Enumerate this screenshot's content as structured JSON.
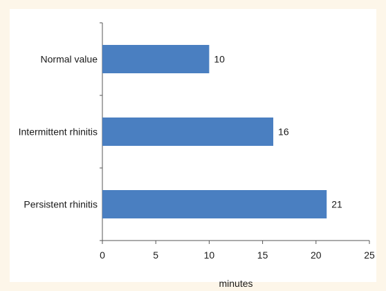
{
  "chart_data": {
    "type": "bar",
    "orientation": "horizontal",
    "categories": [
      "Normal value",
      "Intermittent rhinitis",
      "Persistent rhinitis"
    ],
    "values": [
      10,
      16,
      21
    ],
    "data_labels": [
      "10",
      "16",
      "21"
    ],
    "xlabel": "minutes",
    "ylabel": "",
    "title": "",
    "xlim": [
      0,
      25
    ],
    "xticks": [
      "0",
      "5",
      "10",
      "15",
      "20",
      "25"
    ],
    "grid": false,
    "legend": "none",
    "colors": {
      "bar": "#4a7fc1",
      "background": "#fdf6e9",
      "panel": "#ffffff",
      "axis": "#555555"
    }
  }
}
